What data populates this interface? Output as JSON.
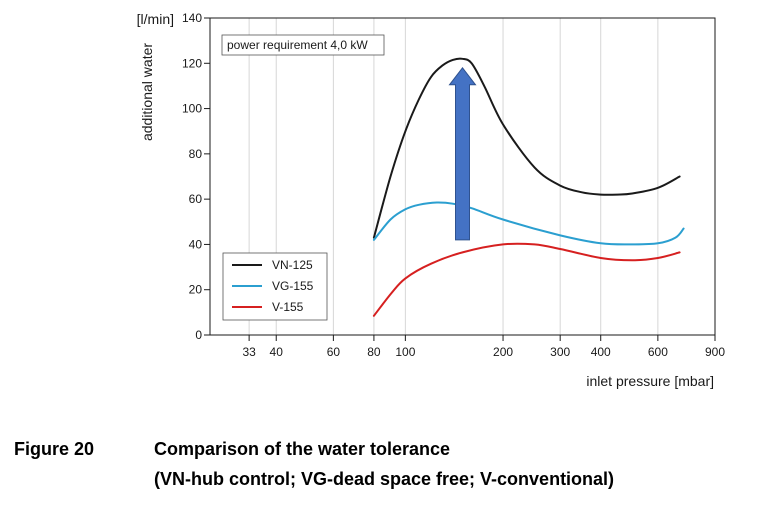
{
  "chart_data": {
    "type": "line",
    "xlabel": "inlet pressure [mbar]",
    "ylabel": "additional water",
    "yunit": "[l/min]",
    "x_scale": "log",
    "xlim": [
      25,
      900
    ],
    "ylim": [
      0,
      140
    ],
    "x_ticks": [
      33,
      40,
      60,
      80,
      100,
      200,
      300,
      400,
      600,
      900
    ],
    "y_ticks": [
      0,
      20,
      40,
      60,
      80,
      100,
      120,
      140
    ],
    "grid": "vertical",
    "legend_position": "bottom-left",
    "annotation": "power requirement 4,0 kW",
    "arrow": {
      "x": 150,
      "y_from": 42,
      "y_to": 118,
      "color": "#4472c4"
    },
    "series": [
      {
        "name": "VN-125",
        "color": "#1a1a1a",
        "x": [
          80,
          90,
          100,
          110,
          120,
          130,
          140,
          150,
          160,
          175,
          200,
          250,
          300,
          350,
          400,
          450,
          500,
          600,
          700
        ],
        "y": [
          43,
          70,
          90,
          104,
          114,
          119,
          121.5,
          122,
          120,
          110,
          93,
          74,
          66,
          63,
          62,
          62,
          62.5,
          65,
          70
        ]
      },
      {
        "name": "VG-155",
        "color": "#2b9fd0",
        "x": [
          80,
          90,
          100,
          110,
          125,
          140,
          160,
          200,
          300,
          400,
          500,
          600,
          680,
          720
        ],
        "y": [
          42,
          51,
          55.5,
          57.5,
          58.5,
          58,
          56,
          51,
          44,
          40.5,
          40,
          40.5,
          43,
          47
        ]
      },
      {
        "name": "V-155",
        "color": "#d62020",
        "x": [
          80,
          90,
          100,
          120,
          150,
          200,
          250,
          300,
          400,
          500,
          600,
          700
        ],
        "y": [
          8.5,
          18,
          25,
          31.5,
          36.5,
          40,
          40,
          38,
          34,
          33,
          34,
          36.5
        ]
      }
    ]
  },
  "caption": {
    "label": "Figure 20",
    "title": "Comparison of the water tolerance",
    "subtitle": "(VN-hub control; VG-dead space free; V-conventional)"
  }
}
